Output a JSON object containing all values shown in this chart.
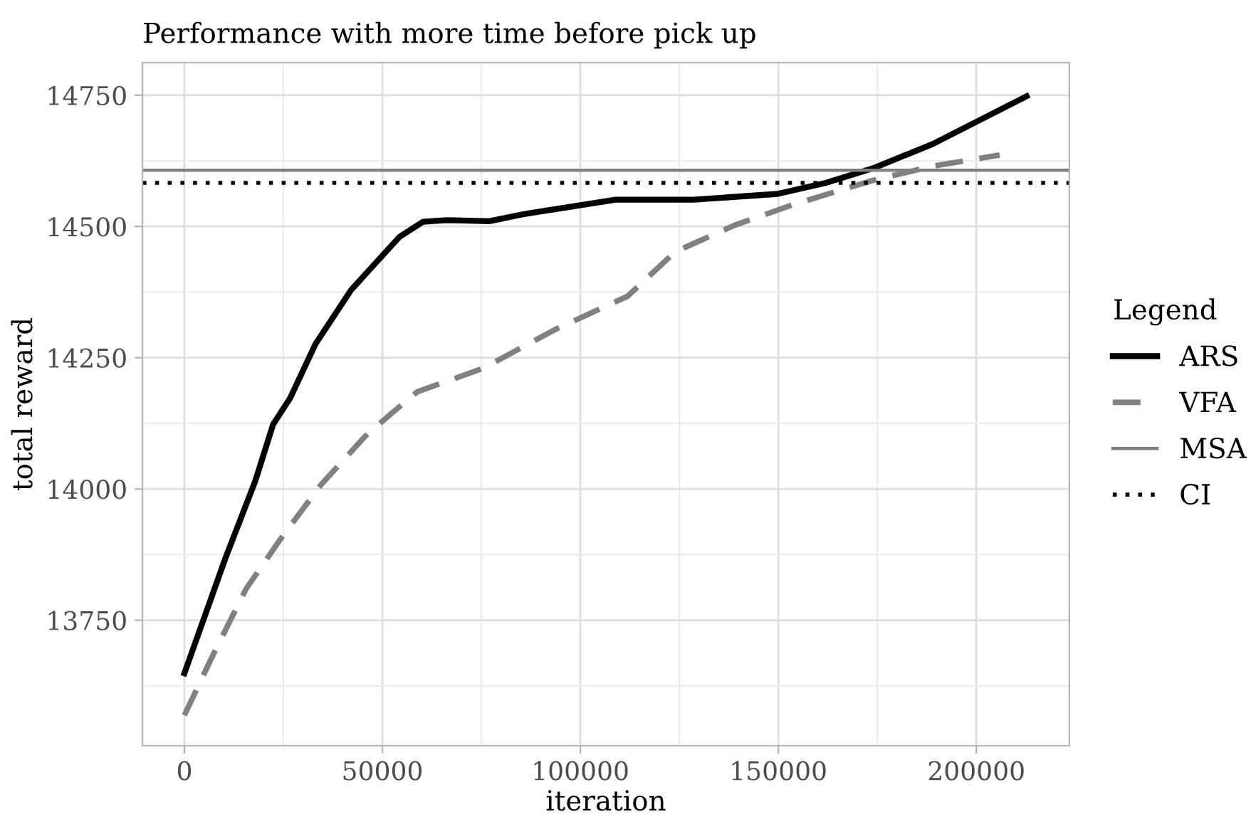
{
  "chart_data": {
    "type": "line",
    "title": "Performance with more time before pick up",
    "xlabel": "iteration",
    "ylabel": "total reward",
    "legend_title": "Legend",
    "legend": "right",
    "grid": true,
    "xlim": [
      -10600,
      223500
    ],
    "xticks": [
      0,
      50000,
      100000,
      150000,
      200000
    ],
    "ylim": [
      13511,
      14812
    ],
    "yticks": [
      13750,
      14000,
      14250,
      14500,
      14750
    ],
    "series": [
      {
        "name": "ARS",
        "color": "#000000",
        "line_style": "solid",
        "x": [
          0,
          10300,
          17900,
          22400,
          26700,
          33100,
          42100,
          54300,
          60300,
          66400,
          77000,
          86100,
          108900,
          128600,
          149800,
          162000,
          174000,
          189000,
          212700
        ],
        "values": [
          13649,
          13867,
          14015,
          14123,
          14173,
          14276,
          14379,
          14480,
          14509,
          14512,
          14510,
          14524,
          14551,
          14551,
          14562,
          14583,
          14611,
          14657,
          14748
        ]
      },
      {
        "name": "VFA",
        "color": "#808080",
        "line_style": "dashed",
        "x": [
          0,
          7300,
          15600,
          24400,
          34600,
          45600,
          52000,
          58800,
          75500,
          93700,
          111900,
          124000,
          139200,
          154300,
          174000,
          189200,
          205900
        ],
        "values": [
          13569,
          13685,
          13810,
          13906,
          14009,
          14100,
          14142,
          14185,
          14230,
          14304,
          14367,
          14452,
          14503,
          14543,
          14588,
          14615,
          14636
        ]
      }
    ],
    "ref_lines": [
      {
        "axis": "y",
        "value": 14607,
        "label": "MSA",
        "color": "#808080",
        "line_style": "solid"
      },
      {
        "axis": "y",
        "value": 14583,
        "label": "CI",
        "color": "#000000",
        "line_style": "dotted"
      }
    ]
  }
}
